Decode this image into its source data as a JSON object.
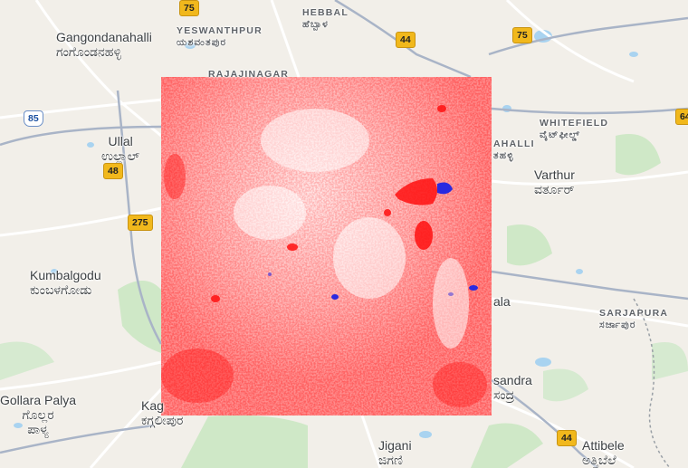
{
  "map": {
    "places": [
      {
        "id": "gangondanahalli",
        "en": "Gangondanahalli",
        "kn": "ಗಂಗೊಂಡನಹಳ್ಳಿ"
      },
      {
        "id": "ullal",
        "en": "Ullal",
        "kn": "ಉಲ್ಲಾಲ್"
      },
      {
        "id": "kumbalgodu",
        "en": "Kumbalgodu",
        "kn": "ಕುಂಬಳಗೋಡು"
      },
      {
        "id": "gollara-palya",
        "en": "Gollara Palya",
        "kn": "ಗೊಲ್ಲರ",
        "kn2": "ಪಾಳ್ಯ"
      },
      {
        "id": "kaggalipura",
        "en": "Kag",
        "kn": "ಕಗ್ಗಲೀಪುರ"
      },
      {
        "id": "varthur",
        "en": "Varthur",
        "kn": "ವರ್ತೂರ್"
      },
      {
        "id": "jigani",
        "en": "Jigani",
        "kn": "ಜಿಗಣಿ"
      },
      {
        "id": "attibele",
        "en": "Attibele",
        "kn": "ಅತ್ತಿಬೆಲೆ"
      },
      {
        "id": "hsr-edge",
        "en": "ala",
        "kn": ""
      },
      {
        "id": "sandra",
        "en": "sandra",
        "kn": "ಸಂದ್ರ"
      },
      {
        "id": "mahalli",
        "en": "AHALLI",
        "kn": "ತಹಳ್ಳಿ"
      }
    ],
    "districts": [
      {
        "id": "yeswanthpur",
        "en": "YESWANTHPUR",
        "kn": "ಯಶವಂತಪುರ"
      },
      {
        "id": "hebbal",
        "en": "HEBBAL",
        "kn": "ಹೆಬ್ಬಾಳ"
      },
      {
        "id": "rajajinagar",
        "en": "RAJAJINAGAR"
      },
      {
        "id": "whitefield",
        "en": "WHITEFIELD",
        "kn": "ವೈಟ್‌ಫೀಲ್ಡ್"
      },
      {
        "id": "sarjapura",
        "en": "SARJAPURA",
        "kn": "ಸರ್ಜಾಪುರ"
      }
    ],
    "shields": [
      {
        "id": "nh75-top",
        "label": "75",
        "kind": "nh"
      },
      {
        "id": "nh44-top",
        "label": "44",
        "kind": "nh"
      },
      {
        "id": "nh75-right",
        "label": "75",
        "kind": "nh"
      },
      {
        "id": "us85",
        "label": "85",
        "kind": "us"
      },
      {
        "id": "nh48",
        "label": "48",
        "kind": "nh"
      },
      {
        "id": "nh275",
        "label": "275",
        "kind": "nh"
      },
      {
        "id": "nh44-bottom",
        "label": "44",
        "kind": "nh"
      },
      {
        "id": "nh64-edge",
        "label": "64",
        "kind": "nh"
      }
    ],
    "overlay": {
      "type": "raster-change",
      "colors": {
        "positive": "#ff1a1a",
        "neutral": "#ffffff",
        "negative": "#2222dd"
      }
    }
  }
}
